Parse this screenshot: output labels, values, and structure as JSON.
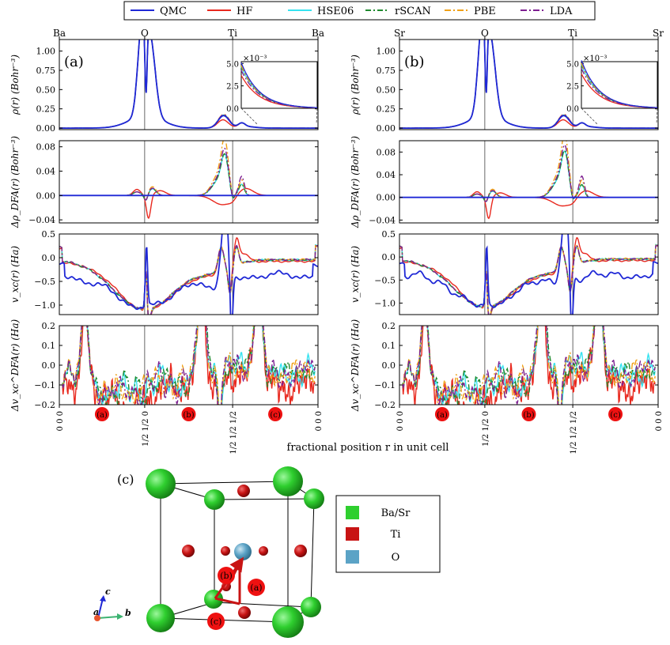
{
  "figure": {
    "xlabel": "fractional position r in unit cell",
    "legend": [
      {
        "name": "QMC",
        "color": "#1f28d6",
        "dash": ""
      },
      {
        "name": "HF",
        "color": "#e8281e",
        "dash": ""
      },
      {
        "name": "HSE06",
        "color": "#35e3f0",
        "dash": ""
      },
      {
        "name": "rSCAN",
        "color": "#1f8a2e",
        "dash": "7 3 2 3"
      },
      {
        "name": "PBE",
        "color": "#f0a016",
        "dash": "8 3 2 3"
      },
      {
        "name": "LDA",
        "color": "#7d1f91",
        "dash": "8 3 2 3"
      }
    ],
    "legend_placement": "top-center"
  },
  "chart_data": [
    {
      "id": "a",
      "panel_label": "(a)",
      "type": "line",
      "top_tick_labels": [
        "Ba",
        "O",
        "Ti",
        "Ba"
      ],
      "bottom_tick_labels": [
        "0 0 0",
        "1/2 1/2 0",
        "1/2 1/2 1/2",
        "0 0 0"
      ],
      "path_markers": [
        "(a)",
        "(b)",
        "(c)"
      ],
      "subplots": [
        {
          "ylabel": "ρ(r) (Bohr⁻³)",
          "ylim": [
            -0.02,
            1.15
          ],
          "yticks": [
            "0.00",
            "0.25",
            "0.50",
            "0.75",
            "1.00"
          ],
          "ytick_values": [
            0,
            0.25,
            0.5,
            0.75,
            1.0
          ],
          "inset": {
            "multiplier": "×10⁻³",
            "yticks": [
              "0.0",
              "2.5",
              "5.0"
            ],
            "ytick_values": [
              0,
              2.5,
              5.0
            ],
            "ylim": [
              0,
              5.2
            ]
          }
        },
        {
          "ylabel": "Δρ_DFA(r) (Bohr⁻³)",
          "ylim": [
            -0.045,
            0.09
          ],
          "yticks": [
            "−0.04",
            "0.00",
            "0.04",
            "0.08"
          ],
          "ytick_values": [
            -0.04,
            0,
            0.04,
            0.08
          ]
        },
        {
          "ylabel": "v_xc(r) (Ha)",
          "ylim": [
            -1.2,
            0.5
          ],
          "yticks": [
            "−1.0",
            "−0.5",
            "0.0",
            "0.5"
          ],
          "ytick_values": [
            -1.0,
            -0.5,
            0,
            0.5
          ]
        },
        {
          "ylabel": "Δv_xc^DFA(r) (Ha)",
          "ylim": [
            -0.2,
            0.2
          ],
          "yticks": [
            "−0.2",
            "−0.1",
            "0.0",
            "0.1",
            "0.2"
          ],
          "ytick_values": [
            -0.2,
            -0.1,
            0,
            0.1,
            0.2
          ]
        }
      ]
    },
    {
      "id": "b",
      "panel_label": "(b)",
      "type": "line",
      "top_tick_labels": [
        "Sr",
        "O",
        "Ti",
        "Sr"
      ],
      "bottom_tick_labels": [
        "0 0 0",
        "1/2 1/2 0",
        "1/2 1/2 1/2",
        "0 0 0"
      ],
      "path_markers": [
        "(a)",
        "(b)",
        "(c)"
      ],
      "subplots": [
        {
          "ylabel": "ρ(r) (Bohr⁻³)",
          "ylim": [
            -0.02,
            1.15
          ],
          "yticks": [
            "0.00",
            "0.25",
            "0.50",
            "0.75",
            "1.00"
          ],
          "ytick_values": [
            0,
            0.25,
            0.5,
            0.75,
            1.0
          ],
          "inset": {
            "multiplier": "×10⁻³",
            "yticks": [
              "0.0",
              "2.5",
              "5.0"
            ],
            "ytick_values": [
              0,
              2.5,
              5.0
            ],
            "ylim": [
              0,
              5.2
            ]
          }
        },
        {
          "ylabel": "Δρ_DFA(r) (Bohr⁻³)",
          "ylim": [
            -0.045,
            0.1
          ],
          "yticks": [
            "−0.04",
            "0.00",
            "0.04",
            "0.08"
          ],
          "ytick_values": [
            -0.04,
            0,
            0.04,
            0.08
          ]
        },
        {
          "ylabel": "v_xc(r) (Ha)",
          "ylim": [
            -1.25,
            0.5
          ],
          "yticks": [
            "−1.0",
            "−0.5",
            "0.0",
            "0.5"
          ],
          "ytick_values": [
            -1.0,
            -0.5,
            0,
            0.5
          ]
        },
        {
          "ylabel": "Δv_xc^DFA(r) (Ha)",
          "ylim": [
            -0.2,
            0.2
          ],
          "yticks": [
            "−0.2",
            "−0.1",
            "0.0",
            "0.1",
            "0.2"
          ],
          "ytick_values": [
            -0.2,
            -0.1,
            0,
            0.1,
            0.2
          ]
        }
      ]
    }
  ],
  "structure": {
    "panel_label": "(c)",
    "legend": [
      {
        "name": "Ba/Sr",
        "color": "#2fcf2f"
      },
      {
        "name": "Ti",
        "color": "#c81414"
      },
      {
        "name": "O",
        "color": "#5ba3c6"
      }
    ],
    "path_labels": [
      "(a)",
      "(b)",
      "(c)"
    ],
    "axis_labels": [
      "c",
      "a",
      "b"
    ]
  }
}
